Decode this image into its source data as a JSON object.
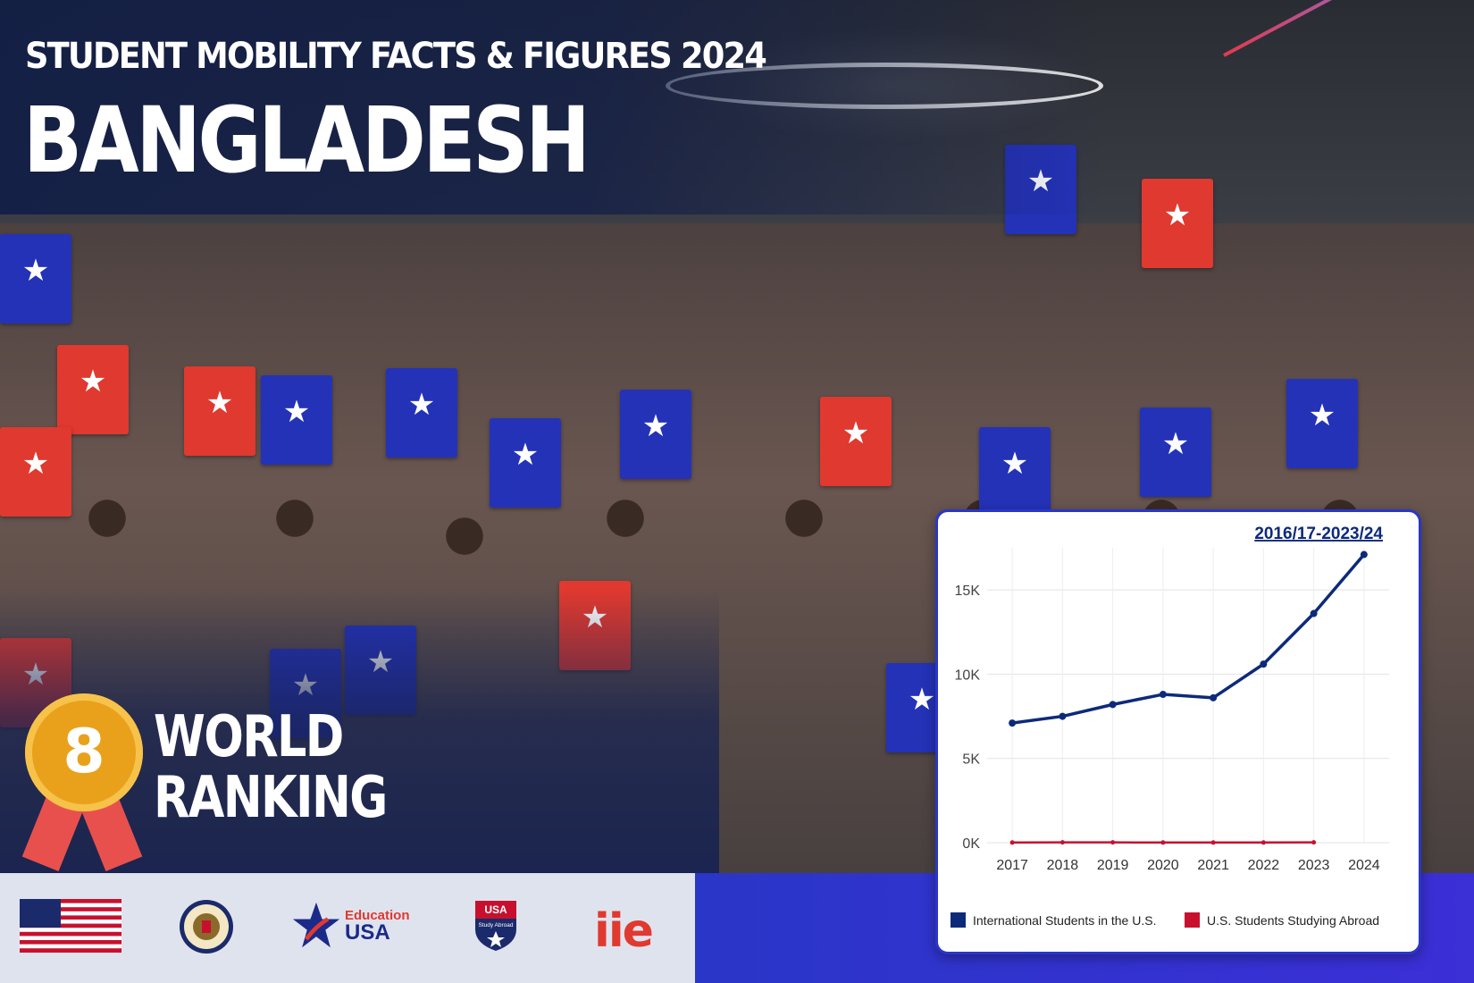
{
  "header": {
    "subtitle": "STUDENT MOBILITY FACTS & FIGURES 2024",
    "title": "BANGLADESH"
  },
  "ranking": {
    "number": "8",
    "label_line1": "WORLD",
    "label_line2": "RANKING"
  },
  "footer": {
    "logos": [
      "us-flag-icon",
      "state-department-seal-icon",
      "education-usa-logo",
      "usa-study-abroad-logo",
      "iie-logo"
    ],
    "education_usa_line1": "Education",
    "education_usa_line2": "USA",
    "study_abroad_top": "USA",
    "study_abroad_bottom": "Study Abroad",
    "iie_text": "iie"
  },
  "colors": {
    "navy": "#0d2a7a",
    "crimson": "#c8102e",
    "brand_blue": "#2a36c8",
    "brand_red": "#e0392f",
    "medal_gold": "#e9a11b"
  },
  "chart_data": {
    "type": "line",
    "title": "2016/17-2023/24",
    "categories": [
      "2017",
      "2018",
      "2019",
      "2020",
      "2021",
      "2022",
      "2023",
      "2024"
    ],
    "series": [
      {
        "name": "International Students in the U.S.",
        "color": "#0d2a7a",
        "values": [
          7100,
          7500,
          8200,
          8800,
          8600,
          10600,
          13600,
          17100
        ]
      },
      {
        "name": "U.S. Students Studying Abroad",
        "color": "#c8102e",
        "values": [
          10,
          20,
          20,
          10,
          10,
          10,
          20,
          null
        ]
      }
    ],
    "y_ticks": [
      "0K",
      "5K",
      "10K",
      "15K"
    ],
    "y_tick_values": [
      0,
      5000,
      10000,
      15000
    ],
    "ylim": [
      0,
      17500
    ],
    "grid": true,
    "legend_position": "bottom"
  }
}
